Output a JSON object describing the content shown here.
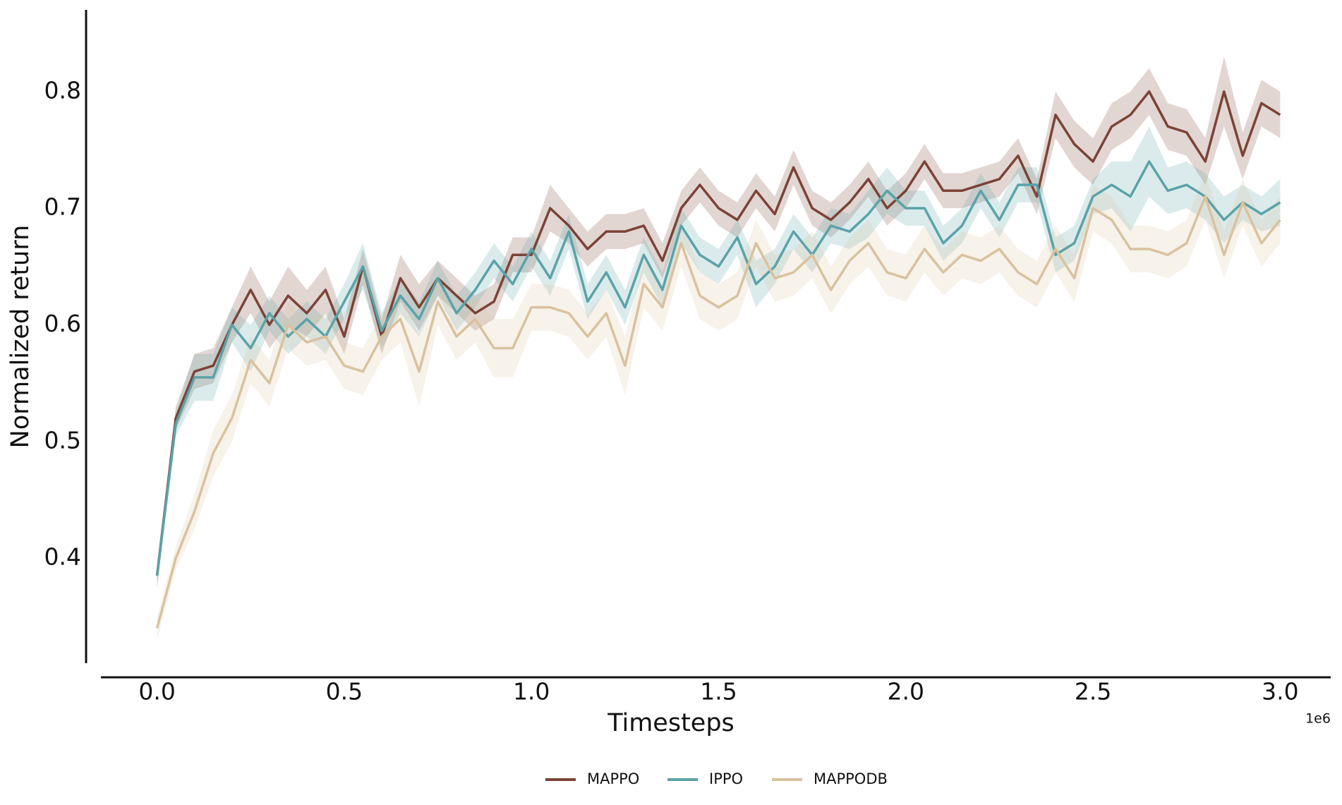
{
  "chart_data": {
    "type": "line",
    "xlabel": "Timesteps",
    "ylabel": "Normalized return",
    "x_offset_label": "1e6",
    "x": [
      0,
      0.05,
      0.1,
      0.15,
      0.2,
      0.25,
      0.3,
      0.35,
      0.4,
      0.45,
      0.5,
      0.55,
      0.6,
      0.65,
      0.7,
      0.75,
      0.8,
      0.85,
      0.9,
      0.95,
      1.0,
      1.05,
      1.1,
      1.15,
      1.2,
      1.25,
      1.3,
      1.35,
      1.4,
      1.45,
      1.5,
      1.55,
      1.6,
      1.65,
      1.7,
      1.75,
      1.8,
      1.85,
      1.9,
      1.95,
      2.0,
      2.05,
      2.1,
      2.15,
      2.2,
      2.25,
      2.3,
      2.35,
      2.4,
      2.45,
      2.5,
      2.55,
      2.6,
      2.65,
      2.7,
      2.75,
      2.8,
      2.85,
      2.9,
      2.95,
      3.0
    ],
    "series": [
      {
        "name": "MAPPO",
        "color": "#7b4336",
        "values": [
          0.385,
          0.52,
          0.56,
          0.565,
          0.6,
          0.63,
          0.6,
          0.625,
          0.61,
          0.63,
          0.59,
          0.65,
          0.59,
          0.64,
          0.615,
          0.64,
          0.625,
          0.61,
          0.62,
          0.66,
          0.66,
          0.7,
          0.685,
          0.665,
          0.68,
          0.68,
          0.685,
          0.655,
          0.7,
          0.72,
          0.7,
          0.69,
          0.715,
          0.695,
          0.735,
          0.7,
          0.69,
          0.705,
          0.725,
          0.7,
          0.715,
          0.74,
          0.715,
          0.715,
          0.72,
          0.725,
          0.745,
          0.71,
          0.78,
          0.755,
          0.74,
          0.77,
          0.78,
          0.8,
          0.77,
          0.765,
          0.74,
          0.8,
          0.745,
          0.79,
          0.78
        ],
        "errors": [
          0.01,
          0.01,
          0.015,
          0.015,
          0.015,
          0.02,
          0.02,
          0.025,
          0.02,
          0.02,
          0.015,
          0.015,
          0.015,
          0.02,
          0.02,
          0.015,
          0.015,
          0.015,
          0.015,
          0.015,
          0.015,
          0.02,
          0.015,
          0.015,
          0.015,
          0.015,
          0.015,
          0.015,
          0.015,
          0.015,
          0.015,
          0.015,
          0.015,
          0.015,
          0.015,
          0.015,
          0.015,
          0.015,
          0.015,
          0.015,
          0.015,
          0.015,
          0.015,
          0.015,
          0.015,
          0.015,
          0.015,
          0.015,
          0.02,
          0.02,
          0.02,
          0.02,
          0.02,
          0.02,
          0.02,
          0.02,
          0.02,
          0.03,
          0.02,
          0.02,
          0.02
        ]
      },
      {
        "name": "IPPO",
        "color": "#5aa3a8",
        "values": [
          0.385,
          0.515,
          0.555,
          0.555,
          0.6,
          0.58,
          0.61,
          0.59,
          0.605,
          0.59,
          0.62,
          0.65,
          0.595,
          0.625,
          0.605,
          0.64,
          0.61,
          0.63,
          0.655,
          0.635,
          0.665,
          0.64,
          0.68,
          0.62,
          0.645,
          0.615,
          0.66,
          0.63,
          0.685,
          0.66,
          0.65,
          0.675,
          0.635,
          0.65,
          0.68,
          0.66,
          0.685,
          0.68,
          0.695,
          0.715,
          0.7,
          0.7,
          0.67,
          0.685,
          0.715,
          0.69,
          0.72,
          0.72,
          0.66,
          0.67,
          0.71,
          0.72,
          0.71,
          0.74,
          0.715,
          0.72,
          0.71,
          0.69,
          0.705,
          0.695,
          0.705
        ],
        "errors": [
          0.01,
          0.01,
          0.02,
          0.02,
          0.015,
          0.02,
          0.015,
          0.015,
          0.015,
          0.015,
          0.015,
          0.02,
          0.015,
          0.015,
          0.015,
          0.015,
          0.015,
          0.015,
          0.015,
          0.015,
          0.015,
          0.015,
          0.015,
          0.015,
          0.015,
          0.015,
          0.015,
          0.015,
          0.015,
          0.015,
          0.015,
          0.015,
          0.02,
          0.015,
          0.015,
          0.015,
          0.015,
          0.015,
          0.02,
          0.02,
          0.015,
          0.015,
          0.015,
          0.015,
          0.015,
          0.015,
          0.015,
          0.015,
          0.015,
          0.015,
          0.015,
          0.02,
          0.03,
          0.03,
          0.02,
          0.02,
          0.02,
          0.02,
          0.015,
          0.015,
          0.02
        ]
      },
      {
        "name": "MAPPODB",
        "color": "#d9c29f",
        "values": [
          0.34,
          0.4,
          0.44,
          0.49,
          0.52,
          0.57,
          0.55,
          0.6,
          0.585,
          0.59,
          0.565,
          0.56,
          0.59,
          0.605,
          0.56,
          0.62,
          0.59,
          0.605,
          0.58,
          0.58,
          0.615,
          0.615,
          0.61,
          0.59,
          0.61,
          0.565,
          0.635,
          0.615,
          0.67,
          0.625,
          0.615,
          0.625,
          0.67,
          0.64,
          0.645,
          0.66,
          0.63,
          0.655,
          0.67,
          0.645,
          0.64,
          0.665,
          0.645,
          0.66,
          0.655,
          0.665,
          0.645,
          0.635,
          0.665,
          0.64,
          0.7,
          0.69,
          0.665,
          0.665,
          0.66,
          0.67,
          0.71,
          0.66,
          0.705,
          0.67,
          0.69
        ],
        "errors": [
          0.01,
          0.01,
          0.015,
          0.02,
          0.02,
          0.02,
          0.02,
          0.02,
          0.02,
          0.02,
          0.02,
          0.02,
          0.02,
          0.02,
          0.03,
          0.02,
          0.02,
          0.02,
          0.025,
          0.025,
          0.02,
          0.02,
          0.02,
          0.02,
          0.02,
          0.025,
          0.02,
          0.02,
          0.02,
          0.02,
          0.02,
          0.02,
          0.02,
          0.02,
          0.02,
          0.02,
          0.02,
          0.02,
          0.02,
          0.02,
          0.02,
          0.02,
          0.02,
          0.02,
          0.02,
          0.02,
          0.02,
          0.02,
          0.02,
          0.02,
          0.02,
          0.02,
          0.02,
          0.02,
          0.02,
          0.02,
          0.02,
          0.02,
          0.02,
          0.02,
          0.02
        ]
      }
    ],
    "xlim": [
      -0.15,
      3.135
    ],
    "ylim": [
      0.31,
      0.87
    ],
    "xticks": [
      {
        "value": 0,
        "label": "0.0"
      },
      0.5,
      {
        "value": 1,
        "label": "1.0"
      },
      1.5,
      {
        "value": 2,
        "label": "2.0"
      },
      2.5,
      {
        "value": 3,
        "label": "3.0"
      }
    ],
    "yticks": [
      0.4,
      0.5,
      0.6,
      0.7,
      0.8
    ],
    "grid": false,
    "legend": "bottom"
  }
}
